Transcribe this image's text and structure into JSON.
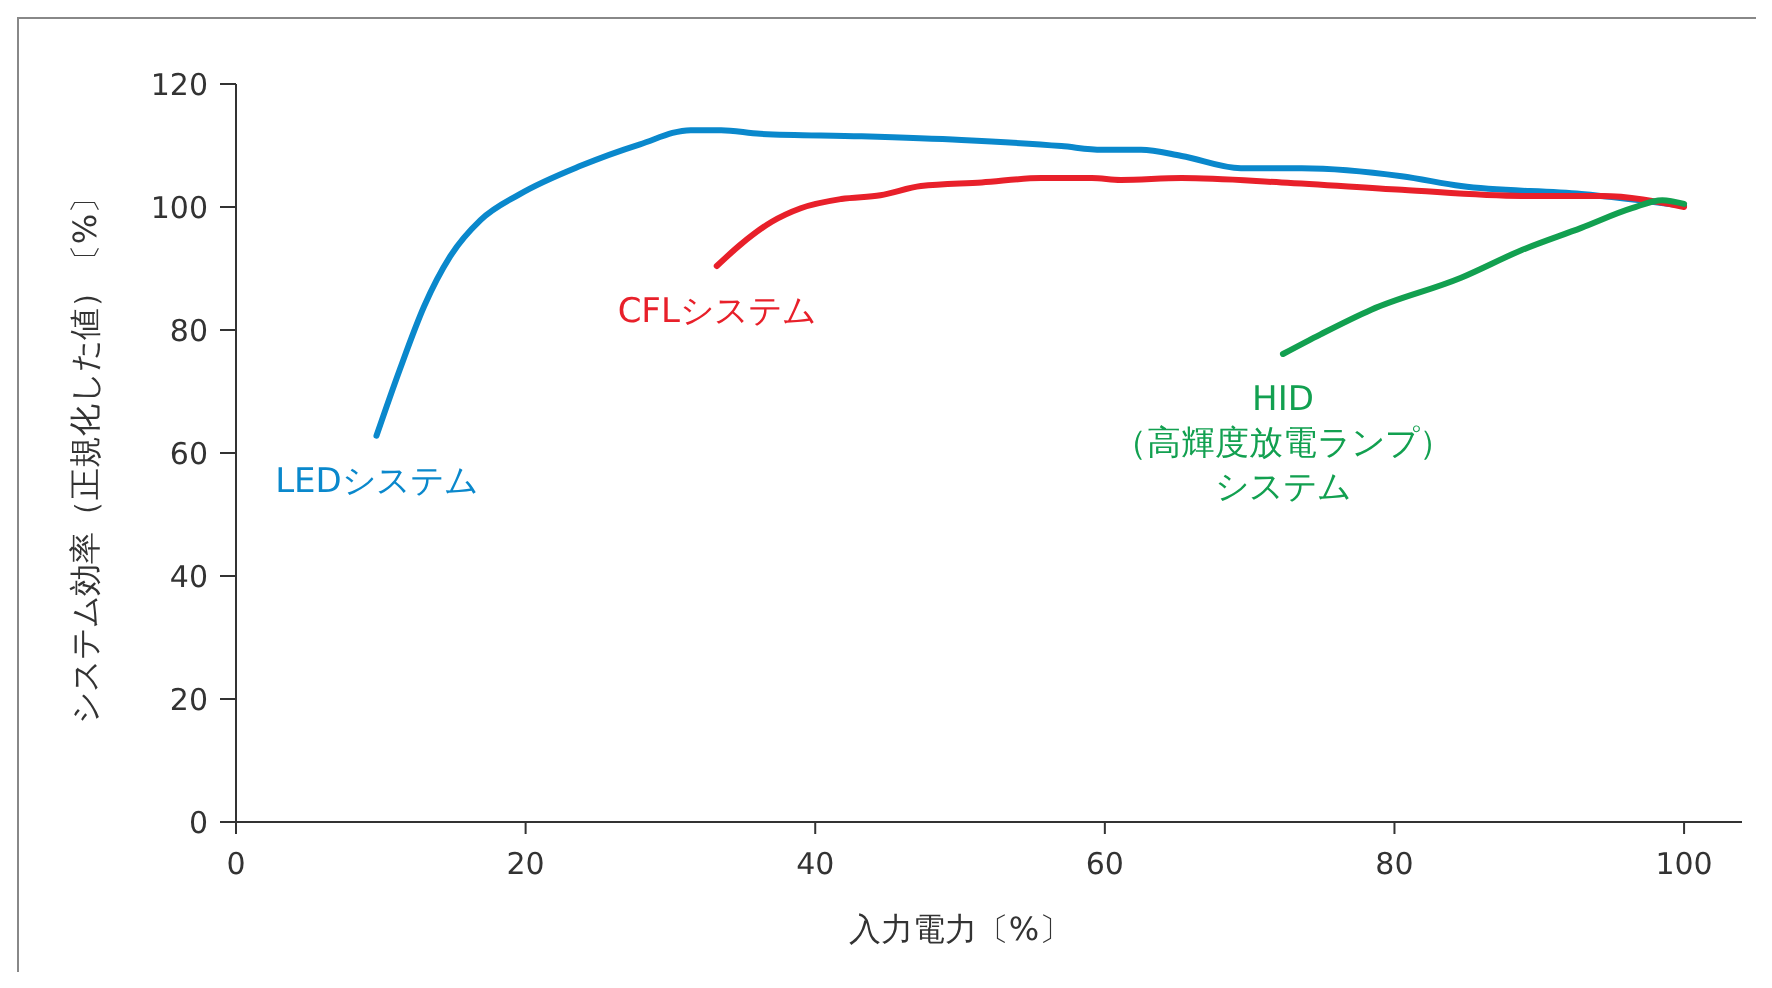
{
  "chart_data": {
    "type": "line",
    "xlabel": "入力電力〔%〕",
    "ylabel": "システム効率（正規化した値）〔%〕",
    "xlim": [
      0,
      104
    ],
    "xticks": [
      0,
      20,
      40,
      60,
      80,
      100
    ],
    "ylim": [
      0,
      120
    ],
    "yticks": [
      0,
      20,
      40,
      60,
      80,
      100,
      120
    ],
    "series": [
      {
        "name": "LEDシステム",
        "color": "#0a88cc",
        "x": [
          9.7,
          11.3,
          13,
          14.8,
          16.9,
          19.6,
          23.8,
          27.9,
          31.4,
          33.5,
          36.2,
          43.2,
          50.1,
          57,
          59.8,
          62.5,
          65.3,
          69.4,
          73.6,
          80.5,
          84.6,
          92.9,
          100
        ],
        "values": [
          62.8,
          73.5,
          83.9,
          92,
          97.9,
          102.1,
          106.7,
          110.2,
          112.5,
          112.5,
          111.9,
          111.5,
          110.9,
          109.9,
          109.3,
          109.3,
          108.3,
          106.3,
          106.3,
          105,
          103.4,
          102.1,
          100.2
        ]
      },
      {
        "name": "CFLシステム",
        "color": "#e8202a",
        "x": [
          33.2,
          34.9,
          37,
          39,
          41.8,
          44.5,
          47.3,
          51.5,
          55.6,
          59.1,
          61.1,
          65.3,
          72.2,
          80.5,
          88.8,
          94.3,
          100
        ],
        "values": [
          90.4,
          94,
          97.6,
          99.8,
          101.3,
          101.9,
          103.4,
          104,
          104.7,
          104.7,
          104.4,
          104.7,
          104,
          102.8,
          101.8,
          101.8,
          100
        ]
      },
      {
        "name": "HID\n（高輝度放電ランプ）システム",
        "color": "#12a050",
        "x": [
          72.3,
          74.9,
          78.4,
          84.6,
          88.8,
          92.9,
          96.4,
          98.5,
          100
        ],
        "values": [
          76.1,
          79.3,
          83.3,
          88.5,
          93,
          96.6,
          99.8,
          101.1,
          100.5
        ]
      }
    ]
  }
}
